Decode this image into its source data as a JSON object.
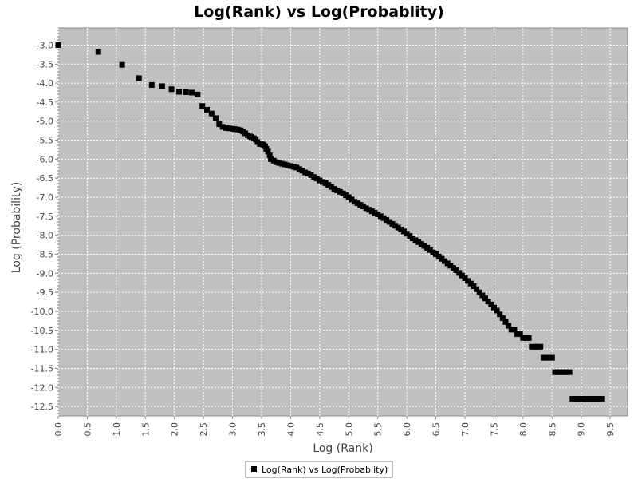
{
  "chart_data": {
    "type": "scatter",
    "title": "Log(Rank) vs Log(Probablity)",
    "xlabel": "Log (Rank)",
    "ylabel": "Log (Probability)",
    "xlim": [
      0.0,
      9.8
    ],
    "ylim": [
      -12.75,
      -2.55
    ],
    "x_ticks": [
      "0.0",
      "0.5",
      "1.0",
      "1.5",
      "2.0",
      "2.5",
      "3.0",
      "3.5",
      "4.0",
      "4.5",
      "5.0",
      "5.5",
      "6.0",
      "6.5",
      "7.0",
      "7.5",
      "8.0",
      "8.5",
      "9.0",
      "9.5"
    ],
    "y_ticks": [
      "-3.0",
      "-3.5",
      "-4.0",
      "-4.5",
      "-5.0",
      "-5.5",
      "-6.0",
      "-6.5",
      "-7.0",
      "-7.5",
      "-8.0",
      "-8.5",
      "-9.0",
      "-9.5",
      "-10.0",
      "-10.5",
      "-11.0",
      "-11.5",
      "-12.0",
      "-12.5"
    ],
    "grid": true,
    "legend_position": "bottom",
    "plot_background": "#c0c0c0",
    "marker_color": "#000000",
    "series": [
      {
        "name": "Log(Rank) vs Log(Probablity)",
        "points": [
          [
            0.0,
            -3.0
          ],
          [
            0.69,
            -3.18
          ],
          [
            1.1,
            -3.52
          ],
          [
            1.39,
            -3.87
          ],
          [
            1.61,
            -4.05
          ],
          [
            1.79,
            -4.08
          ],
          [
            1.95,
            -4.16
          ],
          [
            2.08,
            -4.23
          ],
          [
            2.2,
            -4.24
          ],
          [
            2.3,
            -4.25
          ],
          [
            2.4,
            -4.3
          ],
          [
            2.48,
            -4.6
          ],
          [
            2.56,
            -4.7
          ],
          [
            2.64,
            -4.8
          ],
          [
            2.71,
            -4.92
          ],
          [
            2.77,
            -5.08
          ],
          [
            2.83,
            -5.15
          ],
          [
            2.89,
            -5.18
          ],
          [
            2.94,
            -5.19
          ],
          [
            3.0,
            -5.2
          ],
          [
            3.04,
            -5.21
          ],
          [
            3.09,
            -5.22
          ],
          [
            3.14,
            -5.24
          ],
          [
            3.18,
            -5.27
          ],
          [
            3.22,
            -5.32
          ],
          [
            3.26,
            -5.37
          ],
          [
            3.3,
            -5.4
          ],
          [
            3.33,
            -5.42
          ],
          [
            3.37,
            -5.45
          ],
          [
            3.4,
            -5.48
          ],
          [
            3.43,
            -5.55
          ],
          [
            3.47,
            -5.6
          ],
          [
            3.5,
            -5.6
          ],
          [
            3.53,
            -5.62
          ],
          [
            3.56,
            -5.66
          ],
          [
            3.58,
            -5.73
          ],
          [
            3.61,
            -5.8
          ],
          [
            3.64,
            -5.9
          ],
          [
            3.66,
            -6.0
          ],
          [
            3.71,
            -6.04
          ],
          [
            3.76,
            -6.08
          ],
          [
            3.8,
            -6.1
          ],
          [
            3.85,
            -6.12
          ],
          [
            3.9,
            -6.14
          ],
          [
            3.95,
            -6.16
          ],
          [
            4.0,
            -6.18
          ],
          [
            4.05,
            -6.2
          ],
          [
            4.1,
            -6.22
          ],
          [
            4.15,
            -6.26
          ],
          [
            4.2,
            -6.3
          ],
          [
            4.25,
            -6.35
          ],
          [
            4.3,
            -6.38
          ],
          [
            4.35,
            -6.42
          ],
          [
            4.4,
            -6.47
          ],
          [
            4.45,
            -6.51
          ],
          [
            4.5,
            -6.56
          ],
          [
            4.55,
            -6.6
          ],
          [
            4.6,
            -6.63
          ],
          [
            4.65,
            -6.68
          ],
          [
            4.7,
            -6.73
          ],
          [
            4.75,
            -6.78
          ],
          [
            4.8,
            -6.82
          ],
          [
            4.85,
            -6.86
          ],
          [
            4.9,
            -6.9
          ],
          [
            4.95,
            -6.95
          ],
          [
            5.0,
            -7.0
          ],
          [
            5.05,
            -7.06
          ],
          [
            5.1,
            -7.12
          ],
          [
            5.15,
            -7.16
          ],
          [
            5.2,
            -7.2
          ],
          [
            5.25,
            -7.24
          ],
          [
            5.3,
            -7.29
          ],
          [
            5.35,
            -7.33
          ],
          [
            5.4,
            -7.37
          ],
          [
            5.45,
            -7.41
          ],
          [
            5.5,
            -7.45
          ],
          [
            5.55,
            -7.5
          ],
          [
            5.6,
            -7.55
          ],
          [
            5.65,
            -7.6
          ],
          [
            5.7,
            -7.65
          ],
          [
            5.75,
            -7.7
          ],
          [
            5.8,
            -7.75
          ],
          [
            5.85,
            -7.8
          ],
          [
            5.9,
            -7.85
          ],
          [
            5.95,
            -7.9
          ],
          [
            6.0,
            -7.96
          ],
          [
            6.05,
            -8.02
          ],
          [
            6.1,
            -8.08
          ],
          [
            6.15,
            -8.13
          ],
          [
            6.2,
            -8.18
          ],
          [
            6.25,
            -8.23
          ],
          [
            6.3,
            -8.28
          ],
          [
            6.35,
            -8.33
          ],
          [
            6.4,
            -8.39
          ],
          [
            6.45,
            -8.45
          ],
          [
            6.5,
            -8.5
          ],
          [
            6.55,
            -8.56
          ],
          [
            6.6,
            -8.62
          ],
          [
            6.65,
            -8.68
          ],
          [
            6.7,
            -8.74
          ],
          [
            6.75,
            -8.8
          ],
          [
            6.8,
            -8.86
          ],
          [
            6.85,
            -8.92
          ],
          [
            6.9,
            -8.99
          ],
          [
            6.95,
            -9.06
          ],
          [
            7.0,
            -9.13
          ],
          [
            7.05,
            -9.2
          ],
          [
            7.1,
            -9.27
          ],
          [
            7.15,
            -9.34
          ],
          [
            7.2,
            -9.42
          ],
          [
            7.25,
            -9.5
          ],
          [
            7.3,
            -9.58
          ],
          [
            7.35,
            -9.66
          ],
          [
            7.4,
            -9.74
          ],
          [
            7.45,
            -9.82
          ],
          [
            7.5,
            -9.9
          ],
          [
            7.55,
            -9.98
          ],
          [
            7.6,
            -10.08
          ],
          [
            7.65,
            -10.18
          ],
          [
            7.7,
            -10.28
          ],
          [
            7.75,
            -10.38
          ],
          [
            7.8,
            -10.48
          ],
          [
            7.85,
            -10.48
          ],
          [
            7.9,
            -10.6
          ],
          [
            7.95,
            -10.6
          ],
          [
            8.0,
            -10.7
          ],
          [
            8.05,
            -10.7
          ],
          [
            8.1,
            -10.7
          ],
          [
            8.15,
            -10.93
          ],
          [
            8.2,
            -10.93
          ],
          [
            8.25,
            -10.93
          ],
          [
            8.3,
            -10.93
          ],
          [
            8.35,
            -11.22
          ],
          [
            8.4,
            -11.22
          ],
          [
            8.45,
            -11.22
          ],
          [
            8.5,
            -11.22
          ],
          [
            8.55,
            -11.6
          ],
          [
            8.6,
            -11.6
          ],
          [
            8.65,
            -11.6
          ],
          [
            8.7,
            -11.6
          ],
          [
            8.75,
            -11.6
          ],
          [
            8.8,
            -11.6
          ],
          [
            8.85,
            -12.3
          ],
          [
            8.9,
            -12.3
          ],
          [
            8.95,
            -12.3
          ],
          [
            9.0,
            -12.3
          ],
          [
            9.05,
            -12.3
          ],
          [
            9.1,
            -12.3
          ],
          [
            9.15,
            -12.3
          ],
          [
            9.2,
            -12.3
          ],
          [
            9.25,
            -12.3
          ],
          [
            9.3,
            -12.3
          ],
          [
            9.35,
            -12.3
          ]
        ]
      }
    ]
  }
}
